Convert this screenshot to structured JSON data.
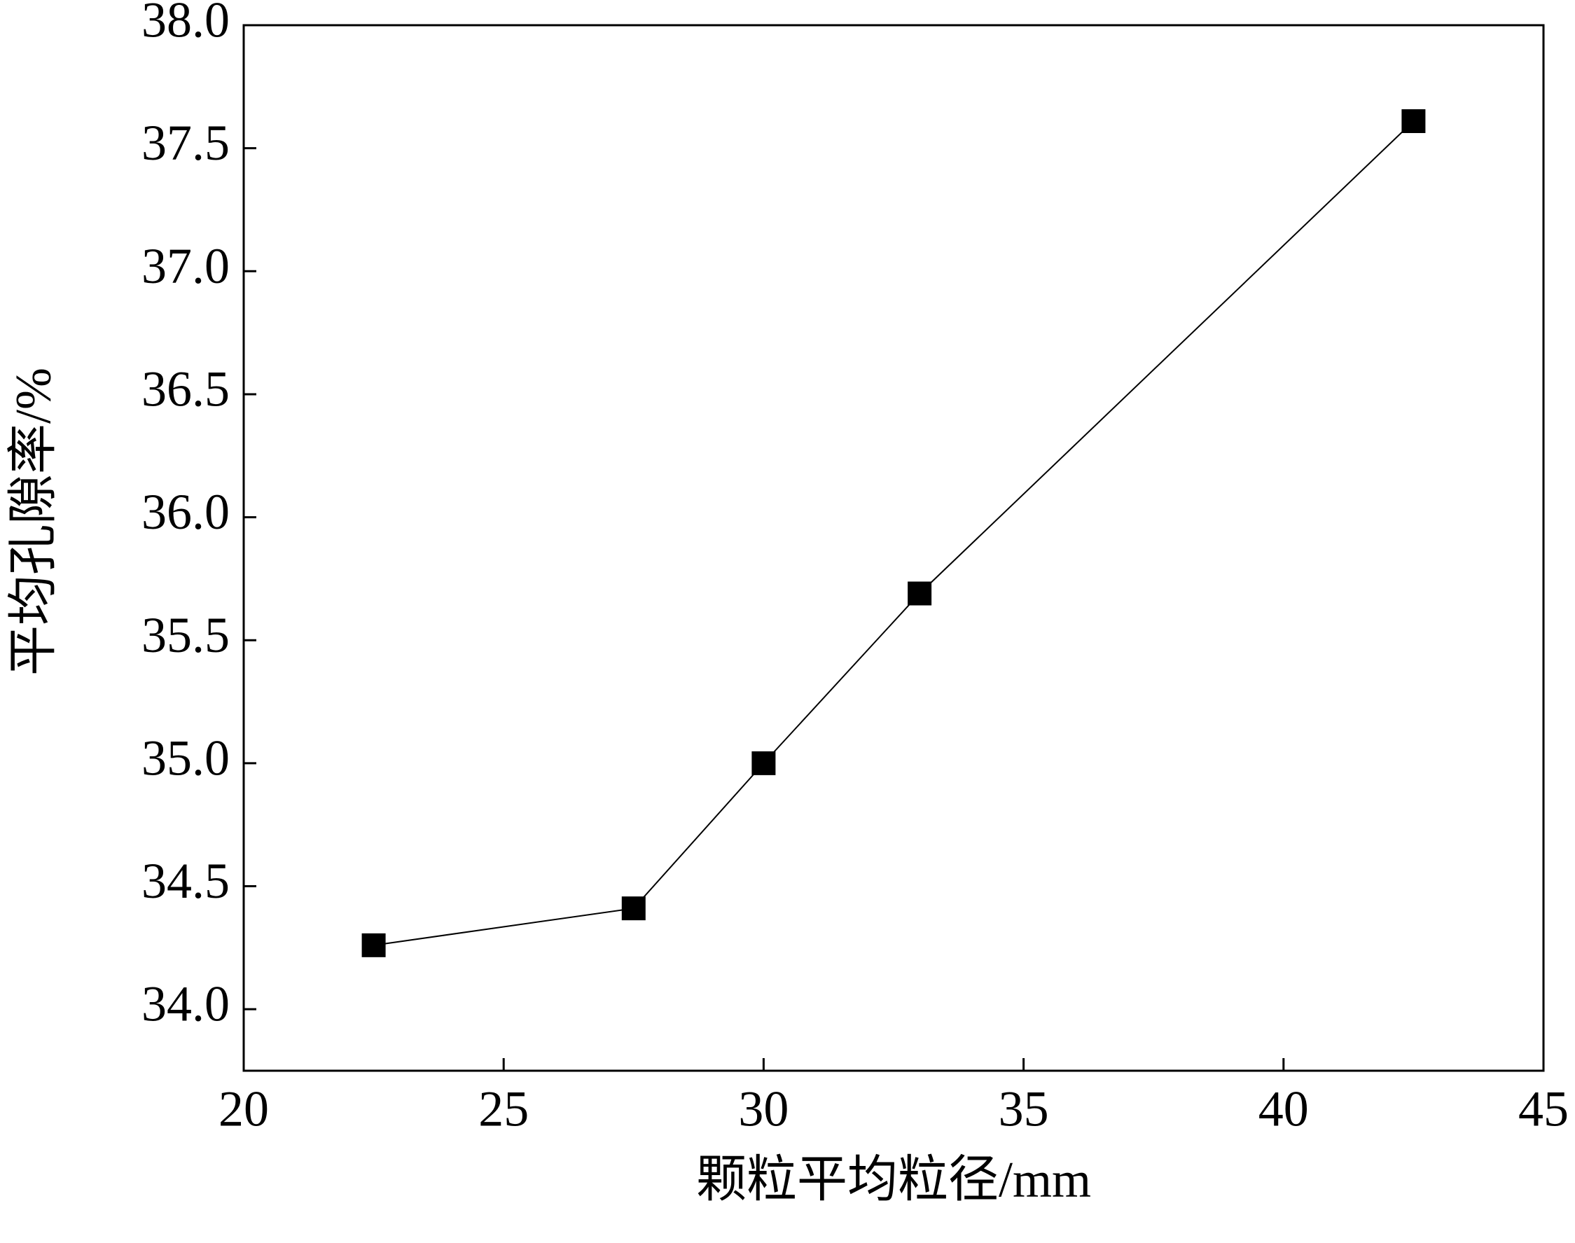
{
  "chart_data": {
    "type": "line",
    "x_label": "颗粒平均粒径/mm",
    "y_label": "平均孔隙率/%",
    "x": [
      22.5,
      27.5,
      30,
      33,
      42.5
    ],
    "series": [
      {
        "color": "#000000",
        "values": [
          34.26,
          34.41,
          35.0,
          35.69,
          37.61
        ]
      }
    ],
    "xlim": [
      20,
      45
    ],
    "xticks": [
      20,
      25,
      30,
      35,
      40,
      45
    ],
    "ylim": [
      33.75,
      38.0
    ],
    "yticks": [
      {
        "value": 34,
        "label": "34.0"
      },
      34.5,
      {
        "value": 35,
        "label": "35.0"
      },
      35.5,
      {
        "value": 36,
        "label": "36.0"
      },
      36.5,
      {
        "value": 37,
        "label": "37.0"
      },
      37.5,
      {
        "value": 38,
        "label": "38.0"
      }
    ]
  }
}
